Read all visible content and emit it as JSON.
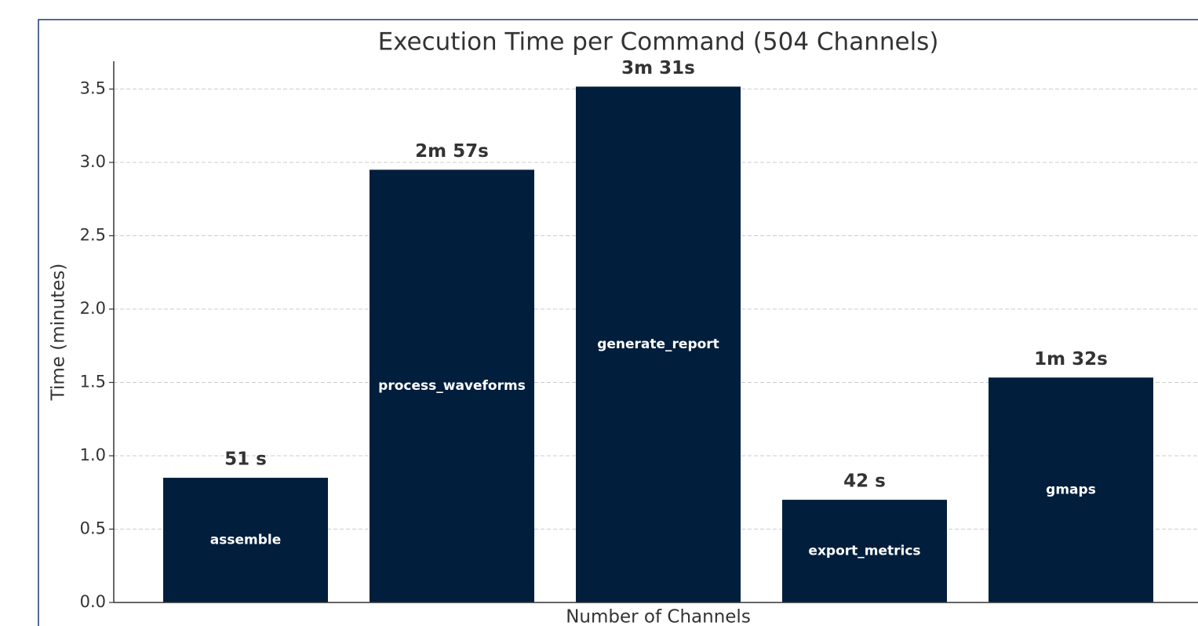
{
  "chart_data": {
    "type": "bar",
    "title": "Execution Time per Command (504 Channels)",
    "xlabel": "Number of Channels",
    "ylabel": "Time (minutes)",
    "categories": [
      "assemble",
      "process_waveforms",
      "generate_report",
      "export_metrics",
      "gmaps"
    ],
    "values": [
      0.85,
      2.95,
      3.5167,
      0.7,
      1.5333
    ],
    "value_labels": [
      "51 s",
      "2m 57s",
      "3m 31s",
      "42 s",
      "1m 32s"
    ],
    "color": "#011e3c",
    "ylim": [
      0,
      3.69
    ],
    "yticks": [
      {
        "value": 0,
        "label": "0.0"
      },
      0.5,
      {
        "value": 1,
        "label": "1.0"
      },
      1.5,
      {
        "value": 2,
        "label": "2.0"
      },
      2.5,
      {
        "value": 3,
        "label": "3.0"
      },
      3.5
    ],
    "grid": true
  }
}
